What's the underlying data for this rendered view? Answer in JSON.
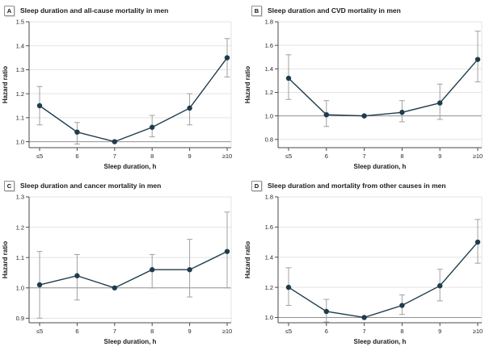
{
  "figure_name": "Sleep duration and mortality in men",
  "colors": {
    "series_line": "#1f3c4c",
    "marker": "#1f3c4c",
    "error_bar": "#a0a0a0",
    "gridline": "#e3e3e3",
    "reference_line": "#909090",
    "axis_line": "#4a4a4a",
    "tick_text": "#262626",
    "title_text": "#1c1c1c"
  },
  "chart_data": [
    {
      "type": "line",
      "panel_label": "A",
      "title": "Sleep duration and all-cause mortality in men",
      "xlabel": "Sleep duration, h",
      "ylabel": "Hazard ratio",
      "categories": [
        "≤5",
        "6",
        "7",
        "8",
        "9",
        "≥10"
      ],
      "values": [
        1.15,
        1.04,
        1.0,
        1.06,
        1.14,
        1.35
      ],
      "ci_low": [
        1.07,
        0.99,
        null,
        1.02,
        1.07,
        1.27
      ],
      "ci_high": [
        1.23,
        1.08,
        null,
        1.11,
        1.2,
        1.43
      ],
      "reference_value": 1.0,
      "yticks": [
        1.0,
        1.1,
        1.2,
        1.3,
        1.4,
        1.5
      ],
      "ytick_labels": [
        "1.0",
        "1.1",
        "1.2",
        "1.3",
        "1.4",
        "1.5"
      ],
      "ylim": [
        0.975,
        1.5
      ],
      "grid": true,
      "legend": "none"
    },
    {
      "type": "line",
      "panel_label": "B",
      "title": "Sleep duration and CVD mortality in men",
      "xlabel": "Sleep duration, h",
      "ylabel": "Hazard ratio",
      "categories": [
        "≤5",
        "6",
        "7",
        "8",
        "9",
        "≥10"
      ],
      "values": [
        1.32,
        1.01,
        1.0,
        1.03,
        1.11,
        1.48
      ],
      "ci_low": [
        1.14,
        0.91,
        null,
        0.95,
        0.97,
        1.29
      ],
      "ci_high": [
        1.52,
        1.13,
        null,
        1.13,
        1.27,
        1.72
      ],
      "reference_value": 1.0,
      "yticks": [
        0.8,
        1.0,
        1.2,
        1.4,
        1.6,
        1.8
      ],
      "ytick_labels": [
        "0.8",
        "1.0",
        "1.2",
        "1.4",
        "1.6",
        "1.8"
      ],
      "ylim": [
        0.73,
        1.8
      ],
      "grid": true,
      "legend": "none"
    },
    {
      "type": "line",
      "panel_label": "C",
      "title": "Sleep duration and cancer mortality in men",
      "xlabel": "Sleep duration, h",
      "ylabel": "Hazard ratio",
      "categories": [
        "≤5",
        "6",
        "7",
        "8",
        "9",
        "≥10"
      ],
      "values": [
        1.01,
        1.04,
        1.0,
        1.06,
        1.06,
        1.12
      ],
      "ci_low": [
        0.9,
        0.96,
        null,
        1.0,
        0.97,
        1.0
      ],
      "ci_high": [
        1.12,
        1.11,
        null,
        1.11,
        1.16,
        1.25
      ],
      "reference_value": 1.0,
      "yticks": [
        0.9,
        1.0,
        1.1,
        1.2,
        1.3
      ],
      "ytick_labels": [
        "0.9",
        "1.0",
        "1.1",
        "1.2",
        "1.3"
      ],
      "ylim": [
        0.885,
        1.3
      ],
      "grid": true,
      "legend": "none"
    },
    {
      "type": "line",
      "panel_label": "D",
      "title": "Sleep duration and mortality from other causes in men",
      "xlabel": "Sleep duration, h",
      "ylabel": "Hazard ratio",
      "categories": [
        "≤5",
        "6",
        "7",
        "8",
        "9",
        "≥10"
      ],
      "values": [
        1.2,
        1.04,
        1.0,
        1.08,
        1.21,
        1.5
      ],
      "ci_low": [
        1.08,
        0.97,
        null,
        1.02,
        1.11,
        1.36
      ],
      "ci_high": [
        1.33,
        1.12,
        null,
        1.15,
        1.32,
        1.65
      ],
      "reference_value": 1.0,
      "yticks": [
        1.0,
        1.2,
        1.4,
        1.6,
        1.8
      ],
      "ytick_labels": [
        "1.0",
        "1.2",
        "1.4",
        "1.6",
        "1.8"
      ],
      "ylim": [
        0.965,
        1.8
      ],
      "grid": true,
      "legend": "none"
    }
  ]
}
